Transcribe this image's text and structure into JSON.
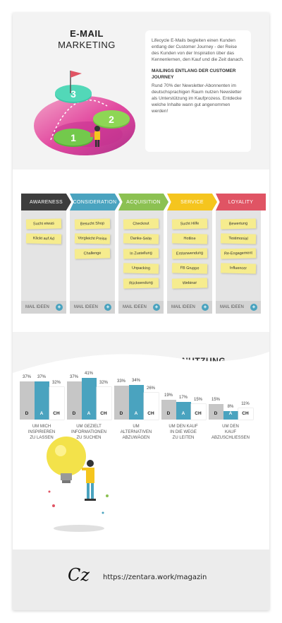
{
  "header": {
    "title_bold": "E-MAIL",
    "title_light": "MARKETING"
  },
  "intro": {
    "text": "Lifecycle E-Mails begleiten einen Kunden entlang der Customer Journey - der Reise des Kunden von der Inspiration über das Kennenlernen, den Kauf und die Zeit danach.",
    "subtitle": "MAILINGS ENTLANG DER CUSTOMER JOURNEY",
    "body": "Rund 70% der Newsletter-Abonnenten im deutschsprachigen Raum nutzen Newsletter als Unterstützung im Kaufprozess. Entdecke welche Inhalte wann gut angenommen werden!"
  },
  "hero": {
    "step_labels": [
      "3",
      "2",
      "1"
    ]
  },
  "journey": {
    "stages": [
      {
        "label": "AWARENESS",
        "color": "#3d3d3d",
        "items": [
          "Sucht etwas",
          "Klickt auf Ad"
        ]
      },
      {
        "label": "CONSIDERATION",
        "color": "#4aa3bf",
        "items": [
          "Besucht Shop",
          "Vergleicht Preise",
          "Challenge"
        ]
      },
      {
        "label": "ACQUISITION",
        "color": "#8cc152",
        "items": [
          "Checkout",
          "Danke-Seite",
          "In Zustellung",
          "Unpacking",
          "Rücksendung"
        ]
      },
      {
        "label": "SERVICE",
        "color": "#f5c51e",
        "items": [
          "Sucht Hilfe",
          "Hotline",
          "Erstanwendung",
          "FB Gruppe",
          "Webinar"
        ]
      },
      {
        "label": "LOYALITY",
        "color": "#e05464",
        "items": [
          "Bewertung",
          "Testimonial",
          "Re-Engagement",
          "Influencer"
        ]
      }
    ],
    "mail_ideas_label": "MAIL IDEEN",
    "plus_glyph": "+"
  },
  "usage": {
    "title": "NUTZUNG",
    "series_labels": [
      "D",
      "A",
      "CH"
    ],
    "series_colors": [
      "#c6c6c6",
      "#4aa3bf",
      "#ffffff"
    ],
    "groups": [
      {
        "label_lines": [
          "UM MICH",
          "INSPIRIEREN",
          "ZU LASSEN"
        ],
        "values": [
          37,
          37,
          32
        ]
      },
      {
        "label_lines": [
          "UM GEZIELT",
          "INFORMATIONEN",
          "ZU SUCHEN"
        ],
        "values": [
          37,
          41,
          32
        ]
      },
      {
        "label_lines": [
          "UM",
          "ALTERNATIVEN",
          "ABZUWÄGEN"
        ],
        "values": [
          33,
          34,
          26
        ]
      },
      {
        "label_lines": [
          "UM DEN KAUF",
          "IN DIE WEGE",
          "ZU LEITEN"
        ],
        "values": [
          19,
          17,
          15
        ]
      },
      {
        "label_lines": [
          "UM DEN",
          "KAUF",
          "ABZUSCHLIESSEN"
        ],
        "values": [
          15,
          8,
          11
        ]
      }
    ]
  },
  "footer": {
    "logo_text": "Cz",
    "url": "https://zentara.work/magazin"
  }
}
